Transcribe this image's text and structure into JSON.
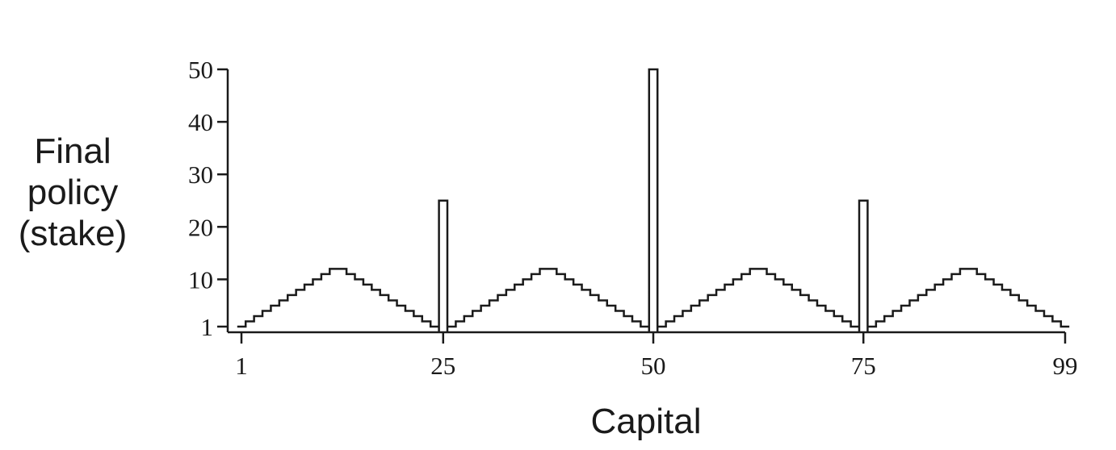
{
  "chart_data": {
    "type": "line",
    "step": true,
    "xlabel": "Capital",
    "ylabel_lines": [
      "Final",
      "policy",
      "(stake)"
    ],
    "x_ticks": [
      1,
      25,
      50,
      75,
      99
    ],
    "y_ticks": [
      1,
      10,
      20,
      30,
      40,
      50
    ],
    "xlim": [
      1,
      99
    ],
    "ylim": [
      0,
      50
    ],
    "grid": false,
    "legend": "none",
    "series": [
      {
        "x": [
          1,
          2,
          3,
          4,
          5,
          6,
          7,
          8,
          9,
          10,
          11,
          12,
          13,
          14,
          15,
          16,
          17,
          18,
          19,
          20,
          21,
          22,
          23,
          24,
          25,
          26,
          27,
          28,
          29,
          30,
          31,
          32,
          33,
          34,
          35,
          36,
          37,
          38,
          39,
          40,
          41,
          42,
          43,
          44,
          45,
          46,
          47,
          48,
          49,
          50,
          51,
          52,
          53,
          54,
          55,
          56,
          57,
          58,
          59,
          60,
          61,
          62,
          63,
          64,
          65,
          66,
          67,
          68,
          69,
          70,
          71,
          72,
          73,
          74,
          75,
          76,
          77,
          78,
          79,
          80,
          81,
          82,
          83,
          84,
          85,
          86,
          87,
          88,
          89,
          90,
          91,
          92,
          93,
          94,
          95,
          96,
          97,
          98,
          99
        ],
        "values": [
          1,
          2,
          3,
          4,
          5,
          6,
          7,
          8,
          9,
          10,
          11,
          12,
          12,
          11,
          10,
          9,
          8,
          7,
          6,
          5,
          4,
          3,
          2,
          1,
          25,
          1,
          2,
          3,
          4,
          5,
          6,
          7,
          8,
          9,
          10,
          11,
          12,
          12,
          11,
          10,
          9,
          8,
          7,
          6,
          5,
          4,
          3,
          2,
          1,
          50,
          1,
          2,
          3,
          4,
          5,
          6,
          7,
          8,
          9,
          10,
          11,
          12,
          12,
          11,
          10,
          9,
          8,
          7,
          6,
          5,
          4,
          3,
          2,
          1,
          25,
          1,
          2,
          3,
          4,
          5,
          6,
          7,
          8,
          9,
          10,
          11,
          12,
          12,
          11,
          10,
          9,
          8,
          7,
          6,
          5,
          4,
          3,
          2,
          1
        ]
      }
    ]
  }
}
